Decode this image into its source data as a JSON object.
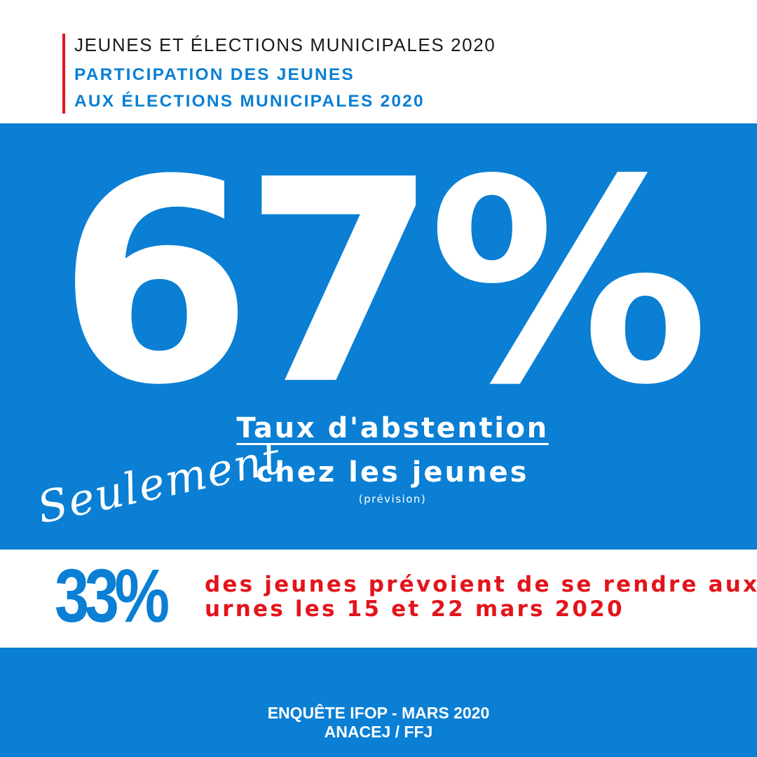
{
  "header": {
    "title": "JEUNES ET ÉLECTIONS MUNICIPALES 2020",
    "subtitle_line1": "PARTICIPATION DES JEUNES",
    "subtitle_line2": "AUX ÉLECTIONS MUNICIPALES 2020"
  },
  "main": {
    "big_stat": "67%",
    "label_line1": "Taux d'abstention",
    "label_line2": "chez les jeunes",
    "label_note": "(prévision)"
  },
  "callout": {
    "script_text": "Seulement",
    "stat": "33%",
    "text_line1": "des jeunes prévoient de se rendre aux",
    "text_line2": "urnes les 15 et 22 mars 2020"
  },
  "footer": {
    "line1": "ENQUÊTE IFOP - MARS 2020",
    "line2": "ANACEJ / FFJ"
  },
  "colors": {
    "blue": "#0a7fd4",
    "red": "#e3141b",
    "white": "#ffffff",
    "dark_text": "#1a1a1a"
  }
}
